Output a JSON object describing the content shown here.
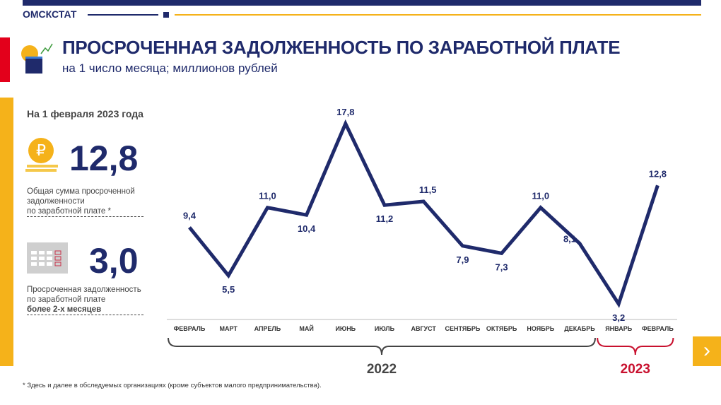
{
  "header": {
    "brand": "ОМСКСТАТ",
    "title": "ПРОСРОЧЕННАЯ ЗАДОЛЖЕННОСТЬ ПО ЗАРАБОТНОЙ ПЛАТЕ",
    "subtitle": "на 1 число месяца; миллионов рублей"
  },
  "sidebar": {
    "as_of": "На 1 февраля 2023 года",
    "total": {
      "value": "12,8",
      "desc1": "Общая сумма просроченной",
      "desc2": "задолженности",
      "desc3": "по заработной плате *",
      "icon": "ruble-coin-icon"
    },
    "overdue": {
      "value": "3,0",
      "desc1": "Просроченная задолженность",
      "desc2": "по заработной плате",
      "desc3": "более 2-х месяцев",
      "icon": "calendar-icon"
    }
  },
  "footnote": "* Здесь и далее в обследуемых организациях (кроме субъектов малого предпринимательства).",
  "colors": {
    "navy": "#1f2a6b",
    "accent": "#f5b21a",
    "red": "#e3001b"
  },
  "chart_data": {
    "type": "line",
    "categories": [
      "ФЕВРАЛЬ",
      "МАРТ",
      "АПРЕЛЬ",
      "МАЙ",
      "ИЮНЬ",
      "ИЮЛЬ",
      "АВГУСТ",
      "СЕНТЯБРЬ",
      "ОКТЯБРЬ",
      "НОЯБРЬ",
      "ДЕКАБРЬ",
      "ЯНВАРЬ",
      "ФЕВРАЛЬ"
    ],
    "values": [
      9.4,
      5.5,
      11.0,
      10.4,
      17.8,
      11.2,
      11.5,
      7.9,
      7.3,
      11.0,
      8.1,
      3.2,
      12.8
    ],
    "labels": [
      "9,4",
      "5,5",
      "11,0",
      "10,4",
      "17,8",
      "11,2",
      "11,5",
      "7,9",
      "7,3",
      "11,0",
      "8,1",
      "3,2",
      "12,8"
    ],
    "groups": [
      {
        "label": "2022",
        "from": 0,
        "to": 10,
        "color": "#444444"
      },
      {
        "label": "2023",
        "from": 11,
        "to": 12,
        "color": "#c8102e"
      }
    ],
    "line_color": "#1f2a6b"
  }
}
